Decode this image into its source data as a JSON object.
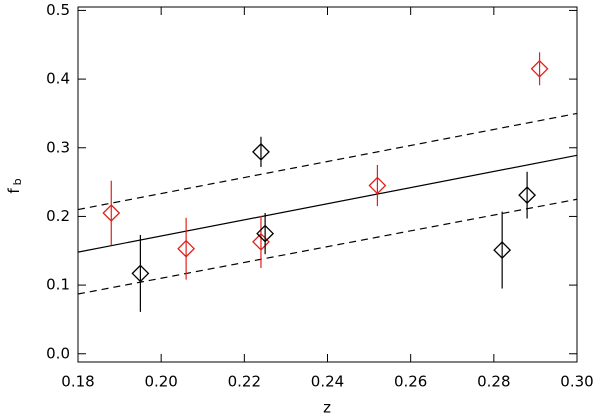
{
  "chart_data": {
    "type": "scatter",
    "xlabel": "z",
    "ylabel": "f",
    "ylabel_subscript": "b",
    "xlim": [
      0.18,
      0.3
    ],
    "ylim": [
      -0.012,
      0.505
    ],
    "xticks": [
      0.18,
      {
        "value": 0.2,
        "label": "0.20"
      },
      0.22,
      0.24,
      0.26,
      0.28,
      {
        "value": 0.3,
        "label": "0.30"
      }
    ],
    "yticks": [
      {
        "value": 0,
        "label": "0.0"
      },
      0.1,
      0.2,
      0.3,
      0.4,
      0.5
    ],
    "series": [
      {
        "color": "#e0201b",
        "x": [
          0.188,
          0.206,
          0.224,
          0.252,
          0.291
        ],
        "values": [
          0.205,
          0.153,
          0.163,
          0.245,
          0.415
        ],
        "errors": [
          0.047,
          0.045,
          0.038,
          0.03,
          0.024
        ]
      },
      {
        "color": "#000000",
        "x": [
          0.195,
          0.224,
          0.225,
          0.282,
          0.288
        ],
        "values": [
          0.117,
          0.294,
          0.175,
          0.151,
          0.231
        ],
        "errors": [
          0.056,
          0.022,
          0.03,
          0.056,
          0.034
        ]
      }
    ],
    "lines": [
      {
        "style": "solid",
        "x": [
          0.18,
          0.3
        ],
        "values": [
          0.148,
          0.289
        ]
      },
      {
        "style": "dashed",
        "x": [
          0.18,
          0.3
        ],
        "values": [
          0.21,
          0.35
        ]
      },
      {
        "style": "dashed",
        "x": [
          0.18,
          0.3
        ],
        "values": [
          0.087,
          0.225
        ]
      }
    ]
  }
}
